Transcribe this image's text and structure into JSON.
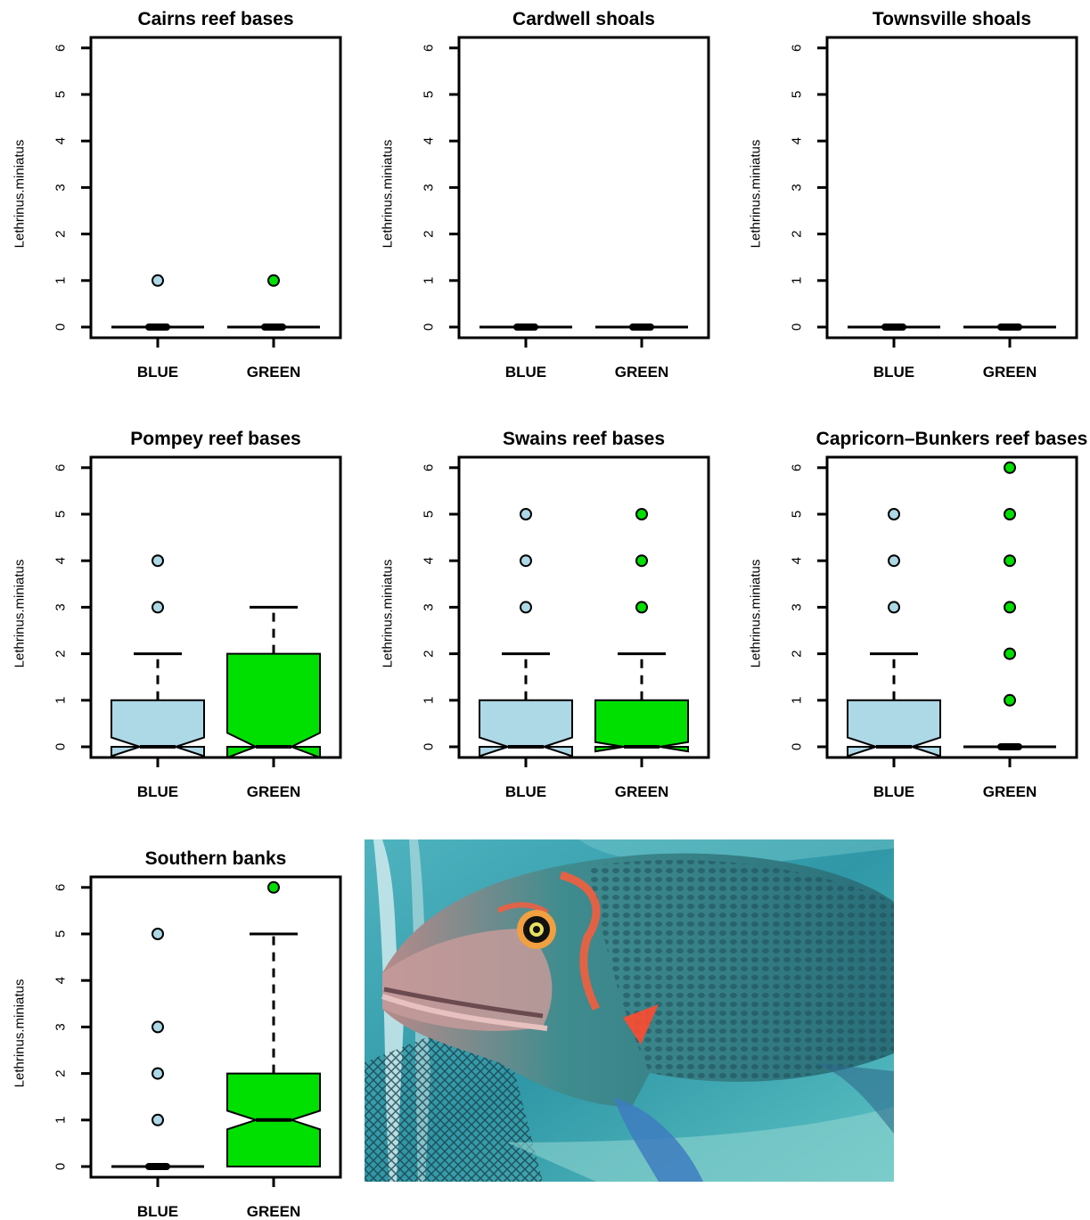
{
  "colors": {
    "blue": "#add8e6",
    "green": "#00e000",
    "frame": "#000000",
    "background": "#ffffff"
  },
  "chart_data": [
    {
      "type": "boxplot",
      "title": "Cairns reef bases",
      "ylabel": "Lethrinus.miniatus",
      "ylim": [
        0,
        6
      ],
      "yticks": [
        "0",
        "1",
        "2",
        "3",
        "4",
        "5",
        "6"
      ],
      "categories": [
        "BLUE",
        "GREEN"
      ],
      "notch": true,
      "boxes": [
        {
          "name": "BLUE",
          "color": "#add8e6",
          "q1": 0,
          "median": 0,
          "q3": 0,
          "whisker_low": 0,
          "whisker_high": 0,
          "notch": [
            0,
            0
          ],
          "outliers": [
            1
          ]
        },
        {
          "name": "GREEN",
          "color": "#00e000",
          "q1": 0,
          "median": 0,
          "q3": 0,
          "whisker_low": 0,
          "whisker_high": 0,
          "notch": [
            0,
            0
          ],
          "outliers": [
            1
          ]
        }
      ]
    },
    {
      "type": "boxplot",
      "title": "Cardwell shoals",
      "ylabel": "Lethrinus.miniatus",
      "ylim": [
        0,
        6
      ],
      "yticks": [
        "0",
        "1",
        "2",
        "3",
        "4",
        "5",
        "6"
      ],
      "categories": [
        "BLUE",
        "GREEN"
      ],
      "notch": true,
      "boxes": [
        {
          "name": "BLUE",
          "color": "#add8e6",
          "q1": 0,
          "median": 0,
          "q3": 0,
          "whisker_low": 0,
          "whisker_high": 0,
          "notch": [
            0,
            0
          ],
          "outliers": []
        },
        {
          "name": "GREEN",
          "color": "#00e000",
          "q1": 0,
          "median": 0,
          "q3": 0,
          "whisker_low": 0,
          "whisker_high": 0,
          "notch": [
            0,
            0
          ],
          "outliers": []
        }
      ]
    },
    {
      "type": "boxplot",
      "title": "Townsville shoals",
      "ylabel": "Lethrinus.miniatus",
      "ylim": [
        0,
        6
      ],
      "yticks": [
        "0",
        "1",
        "2",
        "3",
        "4",
        "5",
        "6"
      ],
      "categories": [
        "BLUE",
        "GREEN"
      ],
      "notch": true,
      "boxes": [
        {
          "name": "BLUE",
          "color": "#add8e6",
          "q1": 0,
          "median": 0,
          "q3": 0,
          "whisker_low": 0,
          "whisker_high": 0,
          "notch": [
            0,
            0
          ],
          "outliers": []
        },
        {
          "name": "GREEN",
          "color": "#00e000",
          "q1": 0,
          "median": 0,
          "q3": 0,
          "whisker_low": 0,
          "whisker_high": 0,
          "notch": [
            0,
            0
          ],
          "outliers": []
        }
      ]
    },
    {
      "type": "boxplot",
      "title": "Pompey reef bases",
      "ylabel": "Lethrinus.miniatus",
      "ylim": [
        0,
        6
      ],
      "yticks": [
        "0",
        "1",
        "2",
        "3",
        "4",
        "5",
        "6"
      ],
      "categories": [
        "BLUE",
        "GREEN"
      ],
      "notch": true,
      "boxes": [
        {
          "name": "BLUE",
          "color": "#add8e6",
          "q1": 0,
          "median": 0,
          "q3": 1,
          "whisker_low": 0,
          "whisker_high": 2,
          "notch": [
            -0.2,
            0.2
          ],
          "outliers": [
            3,
            4
          ]
        },
        {
          "name": "GREEN",
          "color": "#00e000",
          "q1": 0,
          "median": 0,
          "q3": 2,
          "whisker_low": 0,
          "whisker_high": 3,
          "notch": [
            -0.3,
            0.3
          ],
          "outliers": []
        }
      ]
    },
    {
      "type": "boxplot",
      "title": "Swains reef bases",
      "ylabel": "Lethrinus.miniatus",
      "ylim": [
        0,
        6
      ],
      "yticks": [
        "0",
        "1",
        "2",
        "3",
        "4",
        "5",
        "6"
      ],
      "categories": [
        "BLUE",
        "GREEN"
      ],
      "notch": true,
      "boxes": [
        {
          "name": "BLUE",
          "color": "#add8e6",
          "q1": 0,
          "median": 0,
          "q3": 1,
          "whisker_low": 0,
          "whisker_high": 2,
          "notch": [
            -0.2,
            0.2
          ],
          "outliers": [
            3,
            4,
            5
          ]
        },
        {
          "name": "GREEN",
          "color": "#00e000",
          "q1": 0,
          "median": 0,
          "q3": 1,
          "whisker_low": 0,
          "whisker_high": 2,
          "notch": [
            -0.1,
            0.1
          ],
          "outliers": [
            3,
            4,
            5
          ]
        }
      ]
    },
    {
      "type": "boxplot",
      "title": "Capricorn–Bunkers reef bases",
      "ylabel": "Lethrinus.miniatus",
      "ylim": [
        0,
        6
      ],
      "yticks": [
        "0",
        "1",
        "2",
        "3",
        "4",
        "5",
        "6"
      ],
      "categories": [
        "BLUE",
        "GREEN"
      ],
      "notch": true,
      "boxes": [
        {
          "name": "BLUE",
          "color": "#add8e6",
          "q1": 0,
          "median": 0,
          "q3": 1,
          "whisker_low": 0,
          "whisker_high": 2,
          "notch": [
            -0.2,
            0.2
          ],
          "outliers": [
            3,
            4,
            5
          ]
        },
        {
          "name": "GREEN",
          "color": "#00e000",
          "q1": 0,
          "median": 0,
          "q3": 0,
          "whisker_low": 0,
          "whisker_high": 0,
          "notch": [
            0,
            0
          ],
          "outliers": [
            1,
            2,
            3,
            4,
            5,
            6
          ]
        }
      ]
    },
    {
      "type": "boxplot",
      "title": "Southern banks",
      "ylabel": "Lethrinus.miniatus",
      "ylim": [
        0,
        6
      ],
      "yticks": [
        "0",
        "1",
        "2",
        "3",
        "4",
        "5",
        "6"
      ],
      "categories": [
        "BLUE",
        "GREEN"
      ],
      "notch": true,
      "boxes": [
        {
          "name": "BLUE",
          "color": "#add8e6",
          "q1": 0,
          "median": 0,
          "q3": 0,
          "whisker_low": 0,
          "whisker_high": 0,
          "notch": [
            0,
            0
          ],
          "outliers": [
            1,
            2,
            3,
            5
          ]
        },
        {
          "name": "GREEN",
          "color": "#00e000",
          "q1": 0,
          "median": 1,
          "q3": 2,
          "whisker_low": 0,
          "whisker_high": 5,
          "notch": [
            0.8,
            1.2
          ],
          "outliers": [
            6
          ]
        }
      ]
    }
  ],
  "photo": {
    "subject": "fish-photo"
  }
}
